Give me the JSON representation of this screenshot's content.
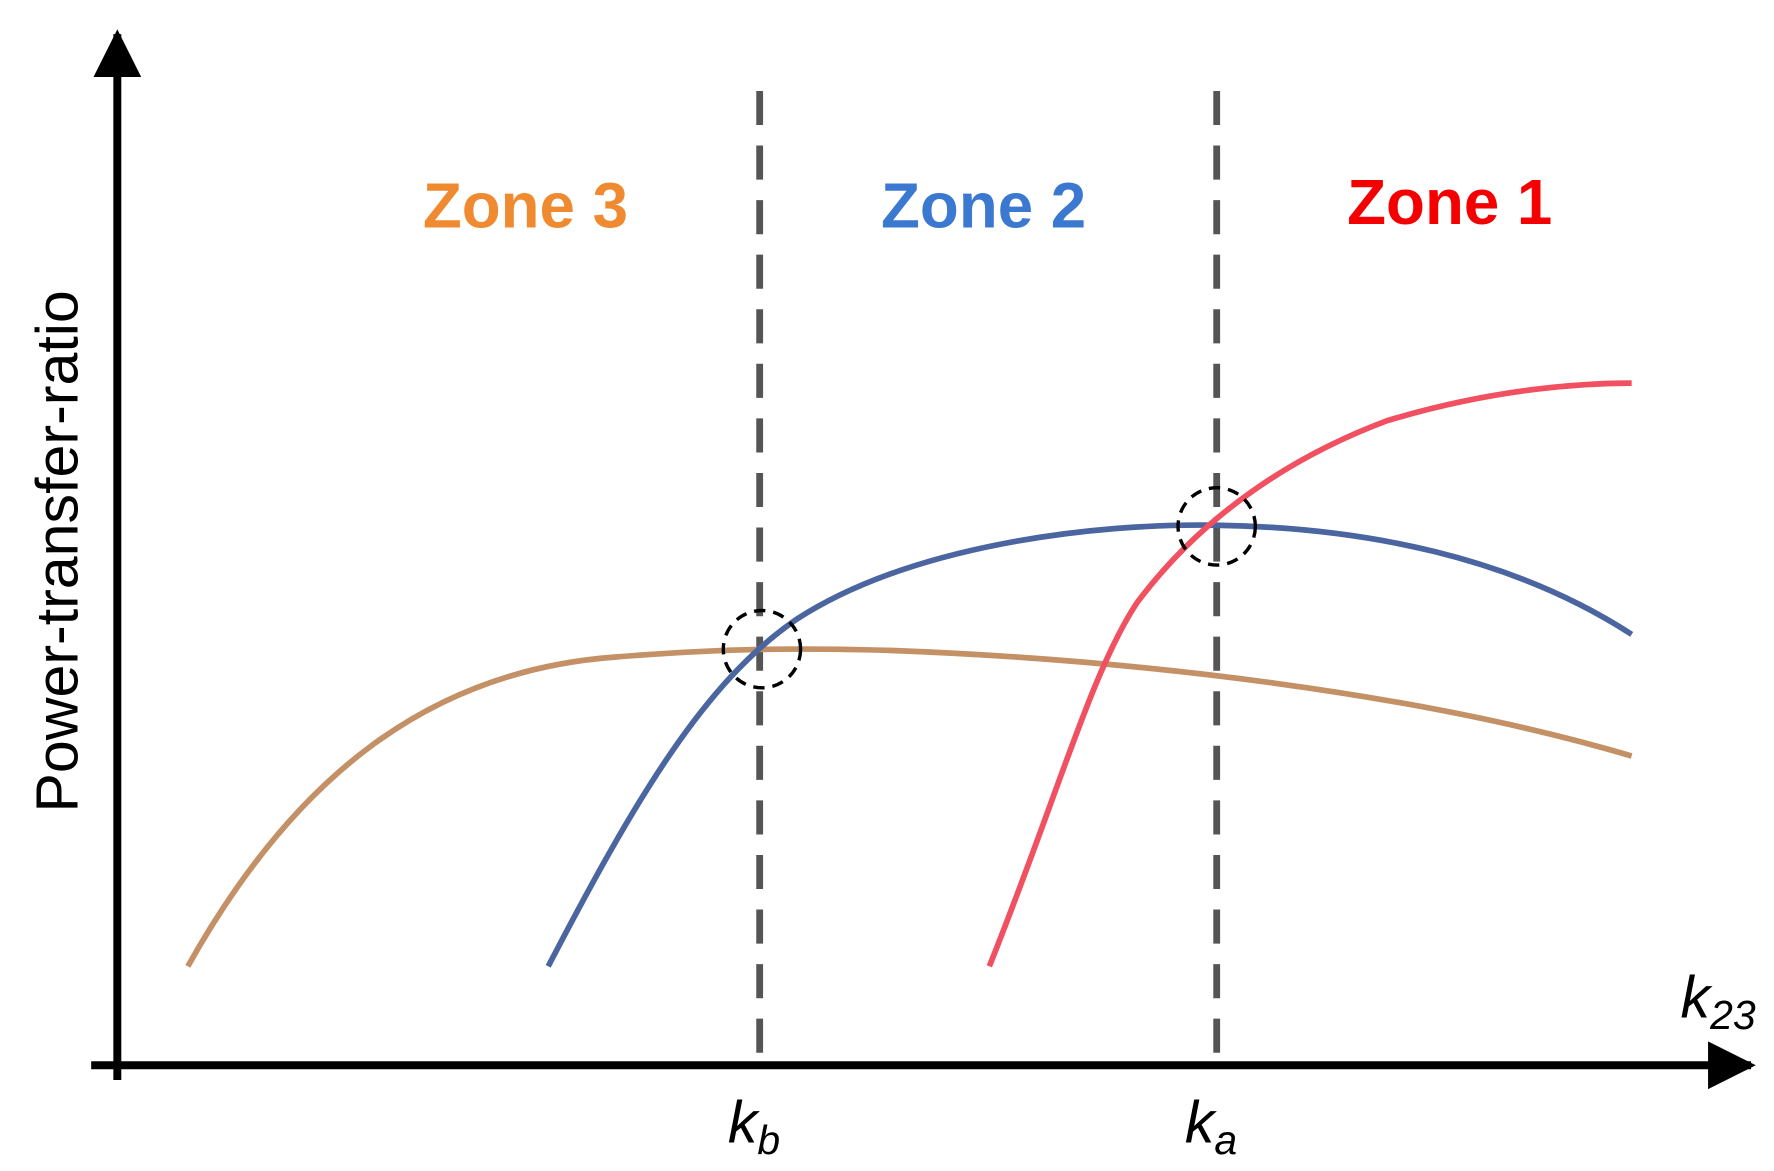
{
  "y_axis_label": "Power-transfer-ratio",
  "x_axis_label": {
    "base": "k",
    "sub": "23"
  },
  "zones": [
    "Zone 3",
    "Zone 2",
    "Zone 1"
  ],
  "x_markers": [
    {
      "base": "k",
      "sub": "b"
    },
    {
      "base": "k",
      "sub": "a"
    }
  ]
}
